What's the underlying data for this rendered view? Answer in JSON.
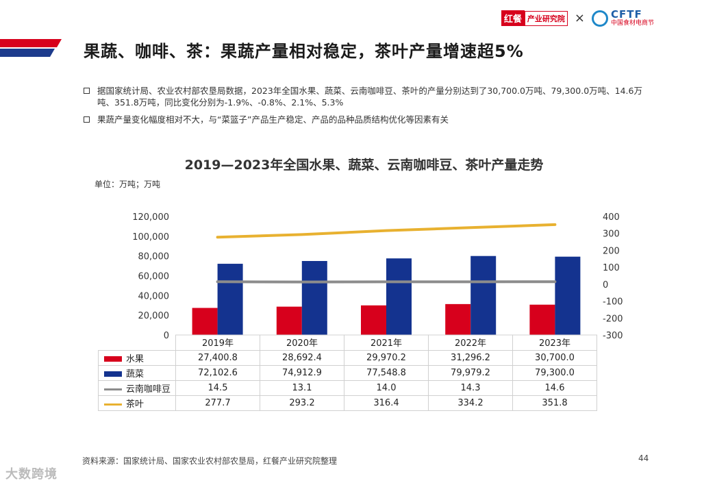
{
  "logos": {
    "hongcan_mark": "红餐",
    "hongcan_text": "产业研究院",
    "separator": "×",
    "cftf_name": "CFTF",
    "cftf_sub": "中国食材电商节"
  },
  "title": "果蔬、咖啡、茶：果蔬产量相对稳定，茶叶产量增速超5%",
  "bullets": [
    "据国家统计局、农业农村部农垦局数据，2023年全国水果、蔬菜、云南咖啡豆、茶叶的产量分别达到了30,700.0万吨、79,300.0万吨、14.6万吨、351.8万吨，同比变化分别为-1.9%、-0.8%、2.1%、5.3%",
    "果蔬产量变化幅度相对不大，与“菜篮子”产品生产稳定、产品的品种品质结构优化等因素有关"
  ],
  "chart_data": {
    "type": "bar",
    "title": "2019—2023年全国水果、蔬菜、云南咖啡豆、茶叶产量走势",
    "unit_label": "单位：万吨；万吨",
    "categories": [
      "2019年",
      "2020年",
      "2021年",
      "2022年",
      "2023年"
    ],
    "y_left": {
      "min": 0,
      "max": 120000,
      "step": 20000,
      "ticks": [
        "0",
        "20,000",
        "40,000",
        "60,000",
        "80,000",
        "100,000",
        "120,000"
      ]
    },
    "y_right": {
      "min": -300,
      "max": 400,
      "step": 100,
      "ticks": [
        "-300",
        "-200",
        "-100",
        "0",
        "100",
        "200",
        "300",
        "400"
      ]
    },
    "series": [
      {
        "name": "水果",
        "kind": "bar",
        "axis": "left",
        "color": "#d7001c",
        "values": [
          27400.8,
          28692.4,
          29970.2,
          31296.2,
          30700.0
        ],
        "labels": [
          "27,400.8",
          "28,692.4",
          "29,970.2",
          "31,296.2",
          "30,700.0"
        ]
      },
      {
        "name": "蔬菜",
        "kind": "bar",
        "axis": "left",
        "color": "#14338f",
        "values": [
          72102.6,
          74912.9,
          77548.8,
          79979.2,
          79300.0
        ],
        "labels": [
          "72,102.6",
          "74,912.9",
          "77,548.8",
          "79,979.2",
          "79,300.0"
        ]
      },
      {
        "name": "云南咖啡豆",
        "kind": "line",
        "axis": "right",
        "color": "#8c8c8c",
        "values": [
          14.5,
          13.1,
          14.0,
          14.3,
          14.6
        ],
        "labels": [
          "14.5",
          "13.1",
          "14.0",
          "14.3",
          "14.6"
        ]
      },
      {
        "name": "茶叶",
        "kind": "line",
        "axis": "right",
        "color": "#e8b130",
        "values": [
          277.7,
          293.2,
          316.4,
          334.2,
          351.8
        ],
        "labels": [
          "277.7",
          "293.2",
          "316.4",
          "334.2",
          "351.8"
        ]
      }
    ],
    "legend": "table-below",
    "grid": false
  },
  "footer": {
    "source": "资料来源：国家统计局、国家农业农村部农垦局，红餐产业研究院整理",
    "page": "44",
    "watermark": "大数跨境"
  }
}
